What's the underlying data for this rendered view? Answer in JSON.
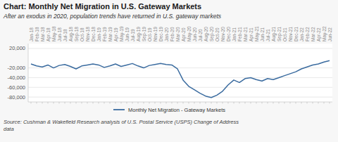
{
  "chart_data": {
    "type": "line",
    "title": "Chart: Monthly Net Migration in U.S. Gateway Markets",
    "subtitle": "After an exodus in 2020, population trends have returned in U.S. gateway markets",
    "source": "Source: Cushman & Wakefield Research analysis of U.S. Postal Service (USPS) Change of Address\ndata",
    "categories": [
      "Jan-18",
      "Feb-18",
      "Mar-18",
      "Apr-18",
      "May-18",
      "Jun-18",
      "Jul-18",
      "Aug-18",
      "Sep-18",
      "Oct-18",
      "Nov-18",
      "Dec-18",
      "Jan-19",
      "Feb-19",
      "Mar-19",
      "Apr-19",
      "May-19",
      "Jun-19",
      "Jul-19",
      "Aug-19",
      "Sep-19",
      "Oct-19",
      "Nov-19",
      "Dec-19",
      "Jan-20",
      "Feb-20",
      "Mar-20",
      "Apr-20",
      "May-20",
      "Jun-20",
      "Jul-20",
      "Aug-20",
      "Sep-20",
      "Oct-20",
      "Nov-20",
      "Dec-20",
      "Jan-21",
      "Feb-21",
      "Mar-21",
      "Apr-21",
      "May-21",
      "Jun-21",
      "Jul-21",
      "Aug-21",
      "Sep-21",
      "Oct-21",
      "Nov-21",
      "Dec-21",
      "Jan-22",
      "Feb-22",
      "Mar-22",
      "Apr-22",
      "May-22",
      "Jun-22"
    ],
    "series": [
      {
        "name": "Monthly Net Migration - Gateway Markets",
        "color": "#3a6b9f",
        "values": [
          -12000,
          -16000,
          -18000,
          -14000,
          -20000,
          -15000,
          -13000,
          -17000,
          -22000,
          -16000,
          -14000,
          -12000,
          -14000,
          -19000,
          -16000,
          -12000,
          -17000,
          -14000,
          -11000,
          -16000,
          -20000,
          -15000,
          -13000,
          -11000,
          -13000,
          -14000,
          -22000,
          -45000,
          -58000,
          -65000,
          -72000,
          -78000,
          -81000,
          -76000,
          -68000,
          -55000,
          -45000,
          -50000,
          -42000,
          -40000,
          -44000,
          -47000,
          -42000,
          -44000,
          -40000,
          -36000,
          -32000,
          -28000,
          -22000,
          -18000,
          -14000,
          -12000,
          -8000,
          -5000
        ]
      }
    ],
    "ylim": [
      -90000,
      30000
    ],
    "yticks": [
      {
        "value": 20000,
        "label": "20,000"
      },
      {
        "value": -20000,
        "label": "-20,000"
      },
      {
        "value": -40000,
        "label": "-40,000"
      },
      {
        "value": -60000,
        "label": "-60,000"
      },
      {
        "value": -80000,
        "label": "-80,000"
      }
    ],
    "grid": true,
    "legend": "bottom"
  }
}
